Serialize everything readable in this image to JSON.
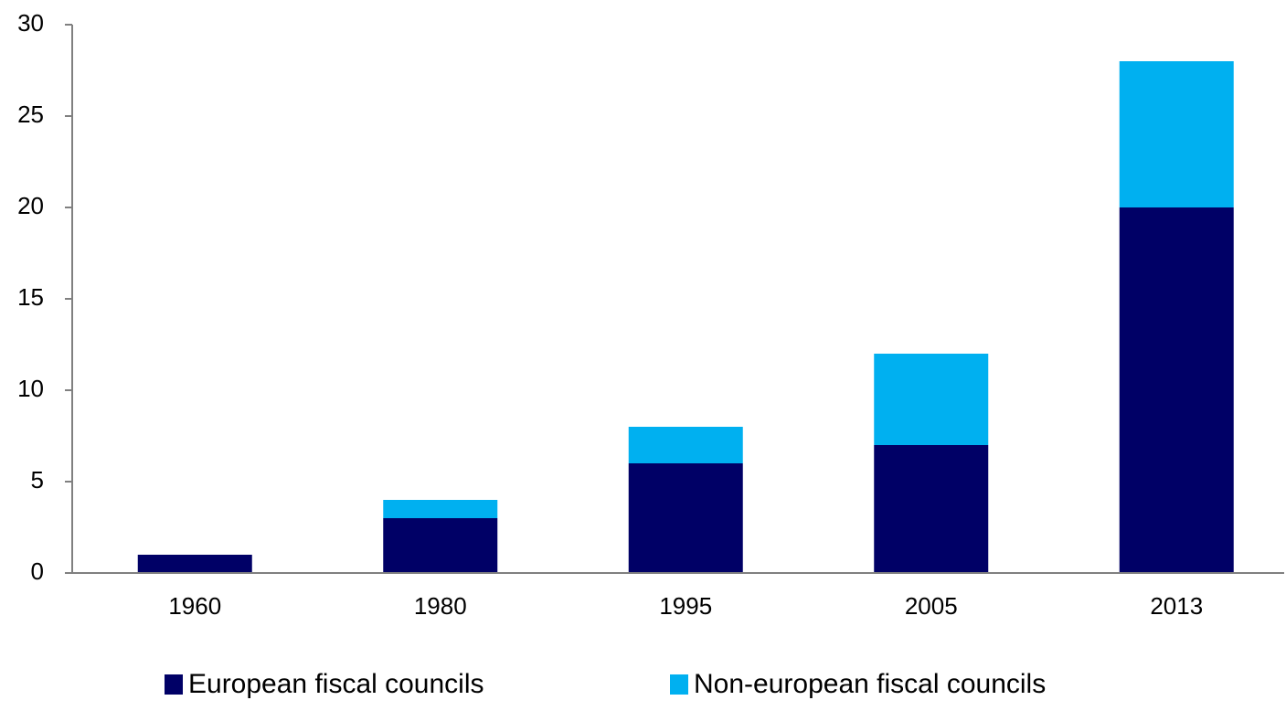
{
  "chart_data": {
    "type": "stacked_bar",
    "categories": [
      "1960",
      "1980",
      "1995",
      "2005",
      "2013"
    ],
    "series": [
      {
        "name": "European fiscal councils",
        "color": "#000066",
        "values": [
          1,
          3,
          6,
          7,
          20
        ]
      },
      {
        "name": "Non-european fiscal councils",
        "color": "#00b0f0",
        "values": [
          0,
          1,
          2,
          5,
          8
        ]
      }
    ],
    "ylim": [
      0,
      30
    ],
    "yticks": [
      0,
      5,
      10,
      15,
      20,
      25,
      30
    ],
    "grid": false,
    "legend": "bottom"
  }
}
